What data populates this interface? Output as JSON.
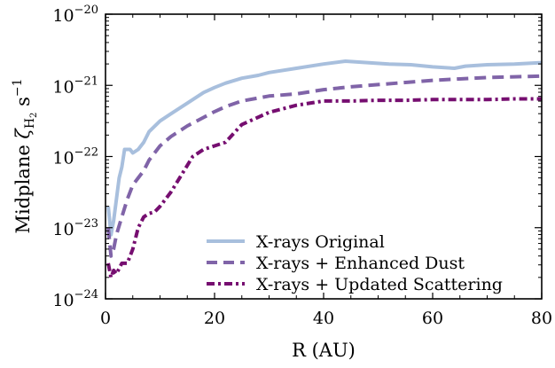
{
  "chart_data": {
    "type": "line",
    "xlabel": "R (AU)",
    "ylabel_main": "Midplane ",
    "ylabel_symbol": "ζ",
    "ylabel_subscript": "H",
    "ylabel_subsub": "2",
    "ylabel_unit": " s",
    "ylabel_unit_exp": "−1",
    "xlim": [
      0,
      80
    ],
    "ylim_log10": [
      -24,
      -20
    ],
    "yscale": "log",
    "xticks": [
      0,
      20,
      40,
      60,
      80
    ],
    "xtick_labels": [
      "0",
      "20",
      "40",
      "60",
      "80"
    ],
    "yticks_log10": [
      -24,
      -23,
      -22,
      -21,
      -20
    ],
    "ytick_base": "10",
    "ytick_exponents": [
      "−24",
      "−23",
      "−22",
      "−21",
      "−20"
    ],
    "legend_position": "bottom-right",
    "series": [
      {
        "name": "X-rays Original",
        "color": "#a8bfdd",
        "style": "solid",
        "points": [
          [
            0.5,
            -22.7
          ],
          [
            1,
            -23.1
          ],
          [
            1.5,
            -22.9
          ],
          [
            2,
            -22.6
          ],
          [
            2.5,
            -22.3
          ],
          [
            3,
            -22.15
          ],
          [
            3.5,
            -21.9
          ],
          [
            4.5,
            -21.9
          ],
          [
            5,
            -21.95
          ],
          [
            6,
            -21.9
          ],
          [
            7,
            -21.8
          ],
          [
            8,
            -21.65
          ],
          [
            10,
            -21.5
          ],
          [
            12,
            -21.4
          ],
          [
            15,
            -21.25
          ],
          [
            18,
            -21.1
          ],
          [
            20,
            -21.03
          ],
          [
            22,
            -20.97
          ],
          [
            25,
            -20.9
          ],
          [
            28,
            -20.86
          ],
          [
            30,
            -20.82
          ],
          [
            35,
            -20.76
          ],
          [
            40,
            -20.7
          ],
          [
            44,
            -20.66
          ],
          [
            48,
            -20.68
          ],
          [
            52,
            -20.7
          ],
          [
            56,
            -20.71
          ],
          [
            60,
            -20.74
          ],
          [
            64,
            -20.76
          ],
          [
            66,
            -20.73
          ],
          [
            70,
            -20.71
          ],
          [
            75,
            -20.7
          ],
          [
            80,
            -20.68
          ]
        ]
      },
      {
        "name": "X-rays + Enhanced Dust",
        "color": "#8064a8",
        "style": "dashed",
        "points": [
          [
            0.5,
            -23.0
          ],
          [
            1,
            -23.4
          ],
          [
            1.5,
            -23.3
          ],
          [
            2,
            -23.1
          ],
          [
            3,
            -22.85
          ],
          [
            4,
            -22.6
          ],
          [
            5,
            -22.4
          ],
          [
            6,
            -22.3
          ],
          [
            7,
            -22.2
          ],
          [
            8,
            -22.05
          ],
          [
            10,
            -21.85
          ],
          [
            12,
            -21.72
          ],
          [
            15,
            -21.57
          ],
          [
            18,
            -21.45
          ],
          [
            20,
            -21.37
          ],
          [
            22,
            -21.3
          ],
          [
            25,
            -21.22
          ],
          [
            30,
            -21.15
          ],
          [
            35,
            -21.12
          ],
          [
            40,
            -21.06
          ],
          [
            45,
            -21.02
          ],
          [
            50,
            -20.99
          ],
          [
            55,
            -20.96
          ],
          [
            60,
            -20.93
          ],
          [
            65,
            -20.91
          ],
          [
            70,
            -20.89
          ],
          [
            75,
            -20.88
          ],
          [
            80,
            -20.87
          ]
        ]
      },
      {
        "name": "X-rays + Updated Scattering",
        "color": "#760e70",
        "style": "dashdot",
        "points": [
          [
            0.5,
            -23.5
          ],
          [
            1,
            -23.7
          ],
          [
            1.5,
            -23.6
          ],
          [
            2,
            -23.65
          ],
          [
            3,
            -23.5
          ],
          [
            4,
            -23.5
          ],
          [
            5,
            -23.3
          ],
          [
            6,
            -23.0
          ],
          [
            7,
            -22.85
          ],
          [
            8,
            -22.8
          ],
          [
            9,
            -22.78
          ],
          [
            10,
            -22.7
          ],
          [
            12,
            -22.5
          ],
          [
            14,
            -22.25
          ],
          [
            16,
            -22.0
          ],
          [
            18,
            -21.9
          ],
          [
            20,
            -21.85
          ],
          [
            22,
            -21.8
          ],
          [
            25,
            -21.55
          ],
          [
            30,
            -21.38
          ],
          [
            35,
            -21.28
          ],
          [
            40,
            -21.22
          ],
          [
            45,
            -21.22
          ],
          [
            50,
            -21.21
          ],
          [
            55,
            -21.21
          ],
          [
            60,
            -21.2
          ],
          [
            65,
            -21.2
          ],
          [
            70,
            -21.2
          ],
          [
            75,
            -21.19
          ],
          [
            80,
            -21.19
          ]
        ]
      }
    ]
  }
}
